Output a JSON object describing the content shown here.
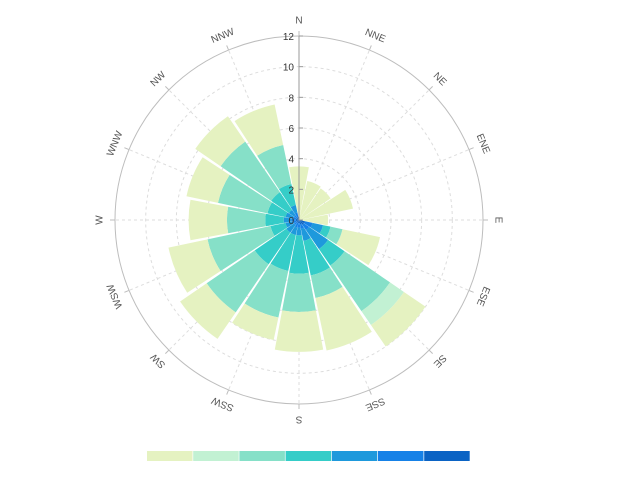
{
  "chart_data": {
    "type": "wind-rose",
    "directions": [
      "N",
      "NNE",
      "NE",
      "ENE",
      "E",
      "ESE",
      "SE",
      "SSE",
      "S",
      "SSW",
      "SW",
      "WSW",
      "W",
      "WNW",
      "NW",
      "NNW"
    ],
    "radial_ticks": [
      "0",
      "2",
      "4",
      "6",
      "8",
      "10",
      "12"
    ],
    "rlim": [
      0,
      12
    ],
    "grid": true,
    "legend": {
      "placement": "bottom",
      "labels": []
    },
    "bin_colors": [
      "#e5f2c1",
      "#c2f1d3",
      "#86e0c8",
      "#35cdc8",
      "#1e99dc",
      "#1681e7",
      "#0b63c4"
    ],
    "series": [
      {
        "values": [
          3.5,
          2.5,
          2.5,
          3.6,
          1.9,
          2.5,
          1.7,
          3.5,
          2.6,
          1.5,
          2.1,
          2.6,
          2.5,
          2.1,
          2.0,
          2.7
        ]
      },
      {
        "values": [
          0.0,
          0.1,
          0.0,
          0.0,
          0.0,
          0.0,
          1.1,
          0.0,
          0.0,
          0.0,
          0.0,
          0.0,
          0.0,
          0.0,
          0.0,
          0.0
        ]
      },
      {
        "values": [
          0.0,
          0.0,
          0.0,
          0.0,
          0.0,
          0.8,
          3.6,
          1.5,
          2.5,
          3.1,
          3.8,
          4.2,
          2.5,
          3.3,
          4.0,
          2.6
        ]
      },
      {
        "values": [
          0.0,
          0.0,
          0.0,
          0.0,
          0.0,
          0.5,
          1.3,
          2.3,
          2.5,
          2.4,
          2.5,
          1.0,
          1.2,
          1.2,
          1.4,
          1.4
        ]
      },
      {
        "values": [
          0.0,
          0.0,
          0.0,
          0.0,
          0.0,
          0.7,
          1.5,
          0.8,
          0.5,
          0.5,
          0.6,
          0.5,
          0.5,
          0.5,
          0.4,
          0.5
        ]
      },
      {
        "values": [
          0.0,
          0.0,
          0.0,
          0.0,
          0.0,
          0.5,
          0.4,
          0.3,
          0.3,
          0.3,
          0.2,
          0.2,
          0.3,
          0.2,
          0.2,
          0.3
        ]
      },
      {
        "values": [
          0.0,
          0.0,
          0.0,
          0.0,
          0.0,
          0.4,
          0.4,
          0.3,
          0.2,
          0.2,
          0.2,
          0.2,
          0.2,
          0.2,
          0.2,
          0.2
        ]
      }
    ]
  }
}
